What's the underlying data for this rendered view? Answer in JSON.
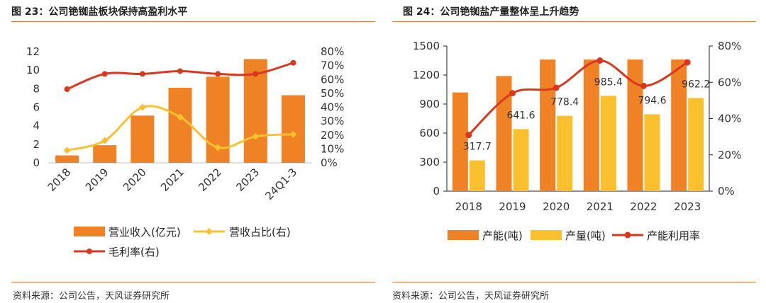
{
  "left": {
    "title": "图 23：公司铯铷盐板块保持高盈利水平",
    "source": "资料来源：公司公告，天风证券研究所"
  },
  "right": {
    "title": "图 24：公司铯铷盐产量整体呈上升趋势",
    "source": "资料来源：公司公告，天风证券研究所"
  },
  "colors": {
    "orange": "#f08226",
    "yellow": "#fac02e",
    "red": "#d9381e",
    "rule": "#e2813a"
  },
  "chart_data": [
    {
      "type": "bar",
      "categories": [
        "2018",
        "2019",
        "2020",
        "2021",
        "2022",
        "2023",
        "24Q1-3"
      ],
      "series": [
        {
          "name": "营业收入(亿元)",
          "type": "bar",
          "axis": "left",
          "values": [
            0.8,
            1.9,
            5.1,
            8.1,
            9.3,
            11.2,
            7.3
          ]
        },
        {
          "name": "营收占比(右)",
          "type": "line",
          "axis": "right",
          "values": [
            9,
            16,
            40,
            33,
            11,
            19,
            20.5
          ]
        },
        {
          "name": "毛利率(右)",
          "type": "line",
          "axis": "right",
          "values": [
            53,
            64,
            64,
            66,
            64,
            64,
            72
          ]
        }
      ],
      "y_left": {
        "min": 0,
        "max": 12,
        "ticks": [
          "0",
          "2",
          "4",
          "6",
          "8",
          "10",
          "12"
        ]
      },
      "y_right": {
        "min": 0,
        "max": 80,
        "ticks": [
          "0%",
          "10%",
          "20%",
          "30%",
          "40%",
          "50%",
          "60%",
          "70%",
          "80%"
        ]
      },
      "legend": {
        "placement": "bottom"
      }
    },
    {
      "type": "bar",
      "categories": [
        "2018",
        "2019",
        "2020",
        "2021",
        "2022",
        "2023"
      ],
      "series": [
        {
          "name": "产能(吨)",
          "type": "bar",
          "axis": "left",
          "values": [
            1020,
            1190,
            1360,
            1360,
            1360,
            1360
          ]
        },
        {
          "name": "产量(吨)",
          "type": "bar",
          "axis": "left",
          "values": [
            317.7,
            641.6,
            778.4,
            985.4,
            794.6,
            962.2
          ],
          "labels": [
            "317.7",
            "641.6",
            "778.4",
            "985.4",
            "794.6",
            "962.2"
          ]
        },
        {
          "name": "产能利用率",
          "type": "line",
          "axis": "right",
          "values": [
            31,
            54,
            57,
            72,
            58,
            71
          ]
        }
      ],
      "y_left": {
        "min": 0,
        "max": 1500,
        "ticks": [
          "0",
          "300",
          "600",
          "900",
          "1200",
          "1500"
        ]
      },
      "y_right": {
        "min": 0,
        "max": 80,
        "ticks": [
          "0%",
          "20%",
          "40%",
          "60%",
          "80%"
        ]
      },
      "legend": {
        "placement": "bottom"
      }
    }
  ]
}
